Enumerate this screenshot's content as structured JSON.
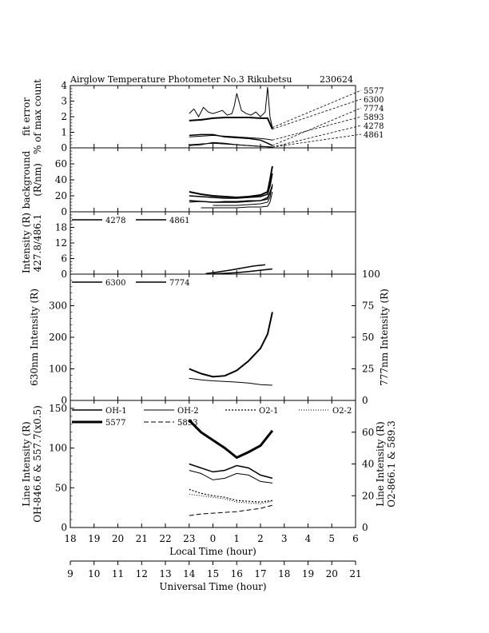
{
  "title": {
    "main": "Airglow Temperature Photometer No.3  Rikubetsu",
    "date": "230624"
  },
  "chart_data": [
    {
      "id": "fit-error",
      "type": "line",
      "ylabel": [
        "fit error",
        "% of max count"
      ],
      "ylim": [
        0,
        4
      ],
      "yticks": [
        0,
        1,
        2,
        3,
        4
      ],
      "series": [
        {
          "name": "5577",
          "x": [
            23.0,
            23.2,
            23.4,
            23.6,
            23.8,
            24.0,
            24.2,
            24.4,
            24.6,
            24.8,
            24.9,
            25.0,
            25.2,
            25.4,
            25.6,
            25.8,
            26.0,
            26.2,
            26.3,
            26.4,
            26.5
          ],
          "y": [
            2.2,
            2.5,
            2.0,
            2.6,
            2.3,
            2.2,
            2.3,
            2.4,
            2.1,
            2.2,
            2.7,
            3.5,
            2.4,
            2.2,
            2.1,
            2.3,
            2.0,
            2.3,
            3.9,
            2.0,
            1.3
          ]
        },
        {
          "name": "6300",
          "x": [
            23.0,
            23.5,
            24.0,
            24.5,
            25.0,
            25.5,
            26.0,
            26.3,
            26.5
          ],
          "y": [
            1.75,
            1.8,
            1.9,
            1.95,
            1.95,
            1.95,
            1.9,
            1.9,
            1.2
          ]
        },
        {
          "name": "7774",
          "x": [
            23.0,
            23.5,
            24.0,
            24.5,
            25.0,
            25.5,
            26.0,
            26.3,
            26.5
          ],
          "y": [
            0.8,
            0.85,
            0.85,
            0.7,
            0.65,
            0.6,
            0.5,
            0.3,
            0.15
          ]
        },
        {
          "name": "5893",
          "x": [
            23.0,
            23.5,
            24.0,
            24.5,
            25.0,
            25.5,
            26.0,
            26.3,
            26.5
          ],
          "y": [
            0.7,
            0.75,
            0.8,
            0.75,
            0.7,
            0.65,
            0.6,
            0.55,
            0.5
          ]
        },
        {
          "name": "4278",
          "x": [
            23.0,
            23.5,
            24.0,
            24.5,
            25.0,
            25.5,
            26.0,
            26.5
          ],
          "y": [
            0.15,
            0.2,
            0.35,
            0.3,
            0.2,
            0.15,
            0.1,
            0.05
          ]
        },
        {
          "name": "4861",
          "x": [
            23.0,
            23.5,
            24.0,
            24.5,
            25.0,
            25.5,
            26.0,
            26.5
          ],
          "y": [
            0.2,
            0.25,
            0.3,
            0.25,
            0.2,
            0.15,
            0.1,
            0.05
          ]
        }
      ]
    },
    {
      "id": "background",
      "type": "line",
      "ylabel": [
        "background",
        "(R/nm)"
      ],
      "ylim": [
        0,
        80
      ],
      "yticks": [
        0,
        20,
        40,
        60
      ],
      "series": [
        {
          "x": [
            23.0,
            23.5,
            24.0,
            24.5,
            25.0,
            25.5,
            26.0,
            26.3,
            26.4,
            26.5
          ],
          "y": [
            25,
            22,
            20,
            19,
            18,
            19,
            21,
            25,
            40,
            57
          ]
        },
        {
          "x": [
            23.0,
            23.5,
            24.0,
            24.5,
            25.0,
            25.5,
            26.0,
            26.3,
            26.4,
            26.5
          ],
          "y": [
            20,
            19,
            18,
            17,
            17,
            18,
            19,
            22,
            32,
            48
          ]
        },
        {
          "x": [
            23.0,
            23.5,
            24.0,
            24.5,
            25.0,
            25.5,
            26.0,
            26.3,
            26.4,
            26.5
          ],
          "y": [
            14,
            13,
            12,
            12,
            12,
            13,
            14,
            16,
            24,
            33
          ]
        },
        {
          "x": [
            23.0,
            23.5,
            24.0,
            24.5,
            25.0,
            25.5,
            26.0,
            26.3,
            26.4,
            26.5
          ],
          "y": [
            12,
            13,
            12,
            13,
            13,
            14,
            14,
            18,
            25,
            30
          ]
        },
        {
          "x": [
            23.5,
            24.0,
            24.5,
            25.0,
            25.5,
            26.0,
            26.3,
            26.4,
            26.5
          ],
          "y": [
            5,
            5,
            5,
            5,
            6,
            6,
            7,
            12,
            25
          ]
        },
        {
          "x": [
            24.0,
            24.5,
            25.0,
            25.5,
            26.0,
            26.3,
            26.4,
            26.5
          ],
          "y": [
            8,
            8,
            8,
            9,
            10,
            12,
            18,
            35
          ]
        }
      ]
    },
    {
      "id": "intensity-4278-4861",
      "type": "line",
      "ylabel": [
        "Intensity (R)",
        "427.8/486.1"
      ],
      "ylim": [
        0,
        24
      ],
      "yticks": [
        0,
        6,
        12,
        18
      ],
      "legend": [
        "4278",
        "4861"
      ],
      "series": [
        {
          "name": "4278",
          "x": [
            24.0,
            24.5,
            25.0,
            25.5,
            26.0,
            26.5
          ],
          "y": [
            0.1,
            0.3,
            0.6,
            1.0,
            1.5,
            2.0
          ]
        },
        {
          "name": "4861",
          "x": [
            23.7,
            24.2,
            24.7,
            25.2,
            25.7,
            26.2
          ],
          "y": [
            0.2,
            0.8,
            1.5,
            2.3,
            3.1,
            3.6
          ]
        }
      ]
    },
    {
      "id": "intensity-6300-7774",
      "type": "line",
      "ylabel": "630nm Intensity (R)",
      "ylabel_right": "777nm Intensity (R)",
      "ylim": [
        0,
        400
      ],
      "yticks": [
        0,
        100,
        200,
        300
      ],
      "ylim_right": [
        0,
        100
      ],
      "yticks_right": [
        0,
        25,
        50,
        75,
        100
      ],
      "legend": [
        "6300",
        "7774"
      ],
      "series": [
        {
          "name": "6300",
          "x": [
            23.0,
            23.5,
            24.0,
            24.5,
            25.0,
            25.5,
            26.0,
            26.3,
            26.5
          ],
          "y": [
            100,
            85,
            75,
            78,
            95,
            125,
            165,
            210,
            280
          ]
        },
        {
          "name": "7774",
          "x": [
            23.0,
            23.5,
            24.0,
            24.5,
            25.0,
            25.5,
            26.0,
            26.5
          ],
          "y": [
            70,
            65,
            62,
            60,
            58,
            55,
            50,
            48
          ]
        }
      ]
    },
    {
      "id": "line-intensity",
      "type": "line",
      "ylabel": [
        "Line Intensity (R)",
        "OH-846.6 & 557.7(x0.5)"
      ],
      "ylabel_right": [
        "Line Intensity (R)",
        "O2-866.1 & 589.3"
      ],
      "ylim": [
        0,
        160
      ],
      "yticks": [
        0,
        50,
        100,
        150
      ],
      "ylim_right": [
        0,
        80
      ],
      "yticks_right": [
        0,
        20,
        40,
        60
      ],
      "legend": [
        "OH-1",
        "OH-2",
        "O2-1",
        "O2-2",
        "5577",
        "5893"
      ],
      "series": [
        {
          "name": "OH-1",
          "x": [
            23.0,
            23.5,
            24.0,
            24.5,
            25.0,
            25.5,
            26.0,
            26.5
          ],
          "y": [
            80,
            75,
            70,
            72,
            78,
            75,
            66,
            62
          ]
        },
        {
          "name": "OH-2",
          "x": [
            23.0,
            23.5,
            24.0,
            24.5,
            25.0,
            25.5,
            26.0,
            26.5
          ],
          "y": [
            72,
            68,
            60,
            62,
            68,
            66,
            58,
            56
          ]
        },
        {
          "name": "O2-1",
          "x": [
            23.0,
            23.5,
            24.0,
            24.5,
            25.0,
            25.5,
            26.0,
            26.5
          ],
          "y": [
            48,
            43,
            40,
            38,
            34,
            33,
            32,
            34
          ]
        },
        {
          "name": "O2-2",
          "x": [
            23.0,
            23.5,
            24.0,
            24.5,
            25.0,
            25.5,
            26.0,
            26.5
          ],
          "y": [
            42,
            40,
            38,
            36,
            32,
            31,
            30,
            33
          ]
        },
        {
          "name": "5577",
          "x": [
            23.0,
            23.5,
            24.0,
            24.5,
            25.0,
            25.5,
            26.0,
            26.5
          ],
          "y": [
            135,
            120,
            110,
            100,
            88,
            95,
            103,
            122
          ]
        },
        {
          "name": "5893",
          "x": [
            23.0,
            23.5,
            24.0,
            24.5,
            25.0,
            25.5,
            26.0,
            26.5
          ],
          "y": [
            15,
            17,
            18,
            19,
            20,
            22,
            24,
            28
          ]
        }
      ]
    }
  ],
  "x_axes": {
    "local_time": {
      "label": "Local Time (hour)",
      "ticks": [
        "18",
        "19",
        "20",
        "21",
        "22",
        "23",
        "0",
        "1",
        "2",
        "3",
        "4",
        "5",
        "6"
      ]
    },
    "universal_time": {
      "label": "Universal Time (hour)",
      "ticks": [
        "9",
        "10",
        "11",
        "12",
        "13",
        "14",
        "15",
        "16",
        "17",
        "18",
        "19",
        "20",
        "21"
      ]
    }
  }
}
